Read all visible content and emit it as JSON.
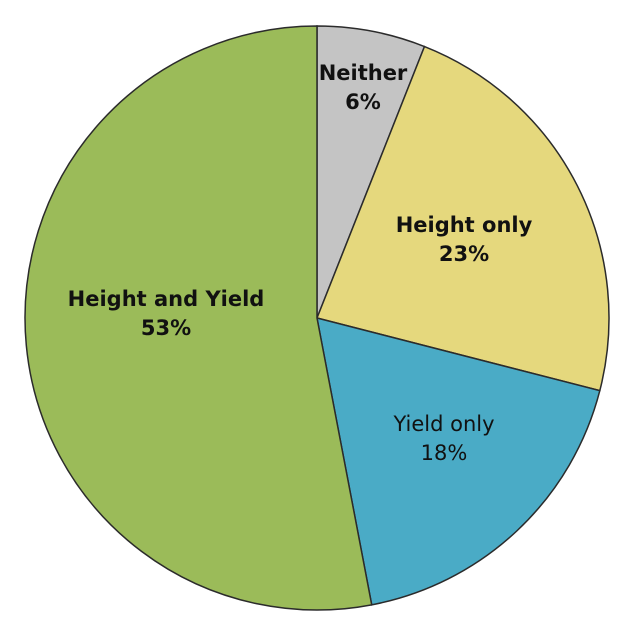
{
  "chart_data": {
    "type": "pie",
    "slices": [
      {
        "label": "Neither",
        "value": 6,
        "value_text": "6%",
        "color": "#c4c4c4",
        "bold": true
      },
      {
        "label": "Height only",
        "value": 23,
        "value_text": "23%",
        "color": "#e5d87d",
        "bold": true
      },
      {
        "label": "Yield only",
        "value": 18,
        "value_text": "18%",
        "color": "#4aabc6",
        "bold": false
      },
      {
        "label": "Height and Yield",
        "value": 53,
        "value_text": "53%",
        "color": "#9bbb59",
        "bold": true
      }
    ],
    "start_angle_deg": 0,
    "direction": "clockwise",
    "legend": "none"
  }
}
